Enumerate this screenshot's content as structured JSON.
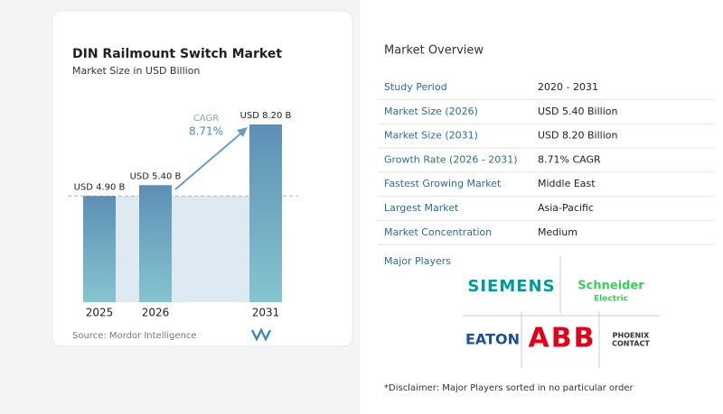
{
  "chart_data": {
    "type": "bar",
    "title": "DIN Railmount Switch Market",
    "subtitle": "Market Size in USD Billion",
    "categories": [
      "2025",
      "2026",
      "2031"
    ],
    "values": [
      4.9,
      5.4,
      8.2
    ],
    "value_labels": [
      "USD 4.90 B",
      "USD 5.40 B",
      "USD 8.20 B"
    ],
    "annotation": {
      "label": "CAGR",
      "value": "8.71%"
    },
    "source": "Source: Mordor Intelligence"
  },
  "overview": {
    "title": "Market Overview",
    "rows": [
      [
        "Study Period",
        "2020 - 2031"
      ],
      [
        "Market Size (2026)",
        "USD 5.40 Billion"
      ],
      [
        "Market Size (2031)",
        "USD 8.20 Billion"
      ],
      [
        "Growth Rate (2026 - 2031)",
        "8.71% CAGR"
      ],
      [
        "Fastest Growing Market",
        "Middle East"
      ],
      [
        "Largest Market",
        "Asia-Pacific"
      ],
      [
        "Market Concentration",
        "Medium"
      ]
    ]
  },
  "players": {
    "title": "Major Players",
    "logos": [
      {
        "lines": [
          "SIEMENS"
        ]
      },
      {
        "lines": [
          "Schneider",
          "Electric"
        ]
      },
      {
        "lines": [
          "EATON"
        ]
      },
      {
        "lines": [
          "ABB"
        ]
      },
      {
        "lines": [
          "PHOENIX",
          "CONTACT"
        ]
      }
    ],
    "disclaimer": "*Disclaimer: Major Players sorted in no particular order"
  }
}
